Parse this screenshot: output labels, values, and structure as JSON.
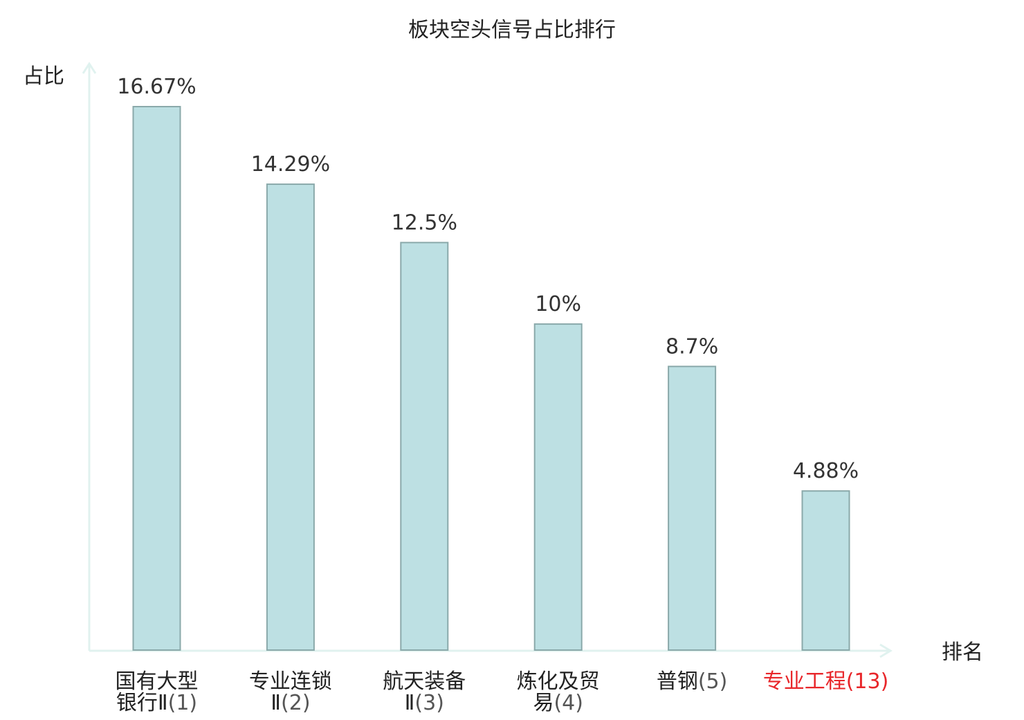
{
  "chart_data": {
    "type": "bar",
    "title": "板块空头信号占比排行",
    "ylabel": "占比",
    "xlabel": "排名",
    "categories": [
      {
        "lines": [
          "国有大型",
          "银行Ⅱ"
        ],
        "rank": "(1)",
        "highlight": false
      },
      {
        "lines": [
          "专业连锁",
          "Ⅱ"
        ],
        "rank": "(2)",
        "highlight": false
      },
      {
        "lines": [
          "航天装备",
          "Ⅱ"
        ],
        "rank": "(3)",
        "highlight": false
      },
      {
        "lines": [
          "炼化及贸",
          "易"
        ],
        "rank": "(4)",
        "highlight": false
      },
      {
        "lines": [
          "普钢"
        ],
        "rank": "(5)",
        "highlight": false
      },
      {
        "lines": [
          "专业工程"
        ],
        "rank": "(13)",
        "highlight": true
      }
    ],
    "values": [
      16.67,
      14.29,
      12.5,
      10,
      8.7,
      4.88
    ],
    "value_labels": [
      "16.67%",
      "14.29%",
      "12.5%",
      "10%",
      "8.7%",
      "4.88%"
    ],
    "ylim": [
      0,
      16.67
    ],
    "grid": false,
    "colors": {
      "bar_fill": "#bde0e3",
      "bar_stroke": "#8aa9aa",
      "axis": "#e0f2ef",
      "highlight": "#e8262a"
    }
  }
}
